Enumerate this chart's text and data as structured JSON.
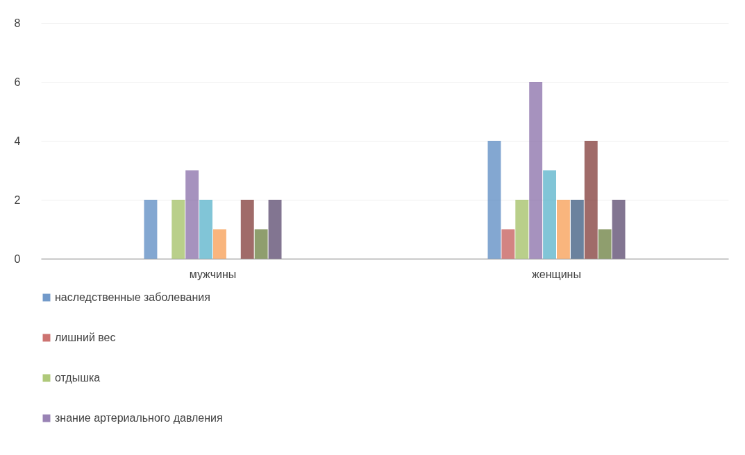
{
  "chart_data": {
    "type": "bar",
    "categories": [
      "мужчины",
      "женщины"
    ],
    "series": [
      {
        "name": "наследственные заболевания",
        "color": "#4f81bd",
        "values": [
          2,
          4
        ]
      },
      {
        "name": "лишний вес",
        "color": "#c0504d",
        "values": [
          0,
          1
        ]
      },
      {
        "name": "отдышка",
        "color": "#9bbb59",
        "values": [
          2,
          2
        ]
      },
      {
        "name": "знание артериального давления",
        "color": "#8064a2",
        "values": [
          3,
          6
        ]
      },
      {
        "color": "#4bacc6",
        "values": [
          2,
          3
        ]
      },
      {
        "color": "#f79646",
        "values": [
          1,
          2
        ]
      },
      {
        "color": "#2c4d75",
        "values": [
          0,
          2
        ]
      },
      {
        "color": "#772c2a",
        "values": [
          2,
          4
        ]
      },
      {
        "color": "#5f7530",
        "values": [
          1,
          1
        ]
      },
      {
        "color": "#4d3b62",
        "values": [
          2,
          2
        ]
      }
    ],
    "ylim": [
      0,
      8
    ],
    "yticks": [
      0,
      2,
      4,
      6,
      8
    ],
    "grid": "y",
    "legend": "bottom"
  }
}
